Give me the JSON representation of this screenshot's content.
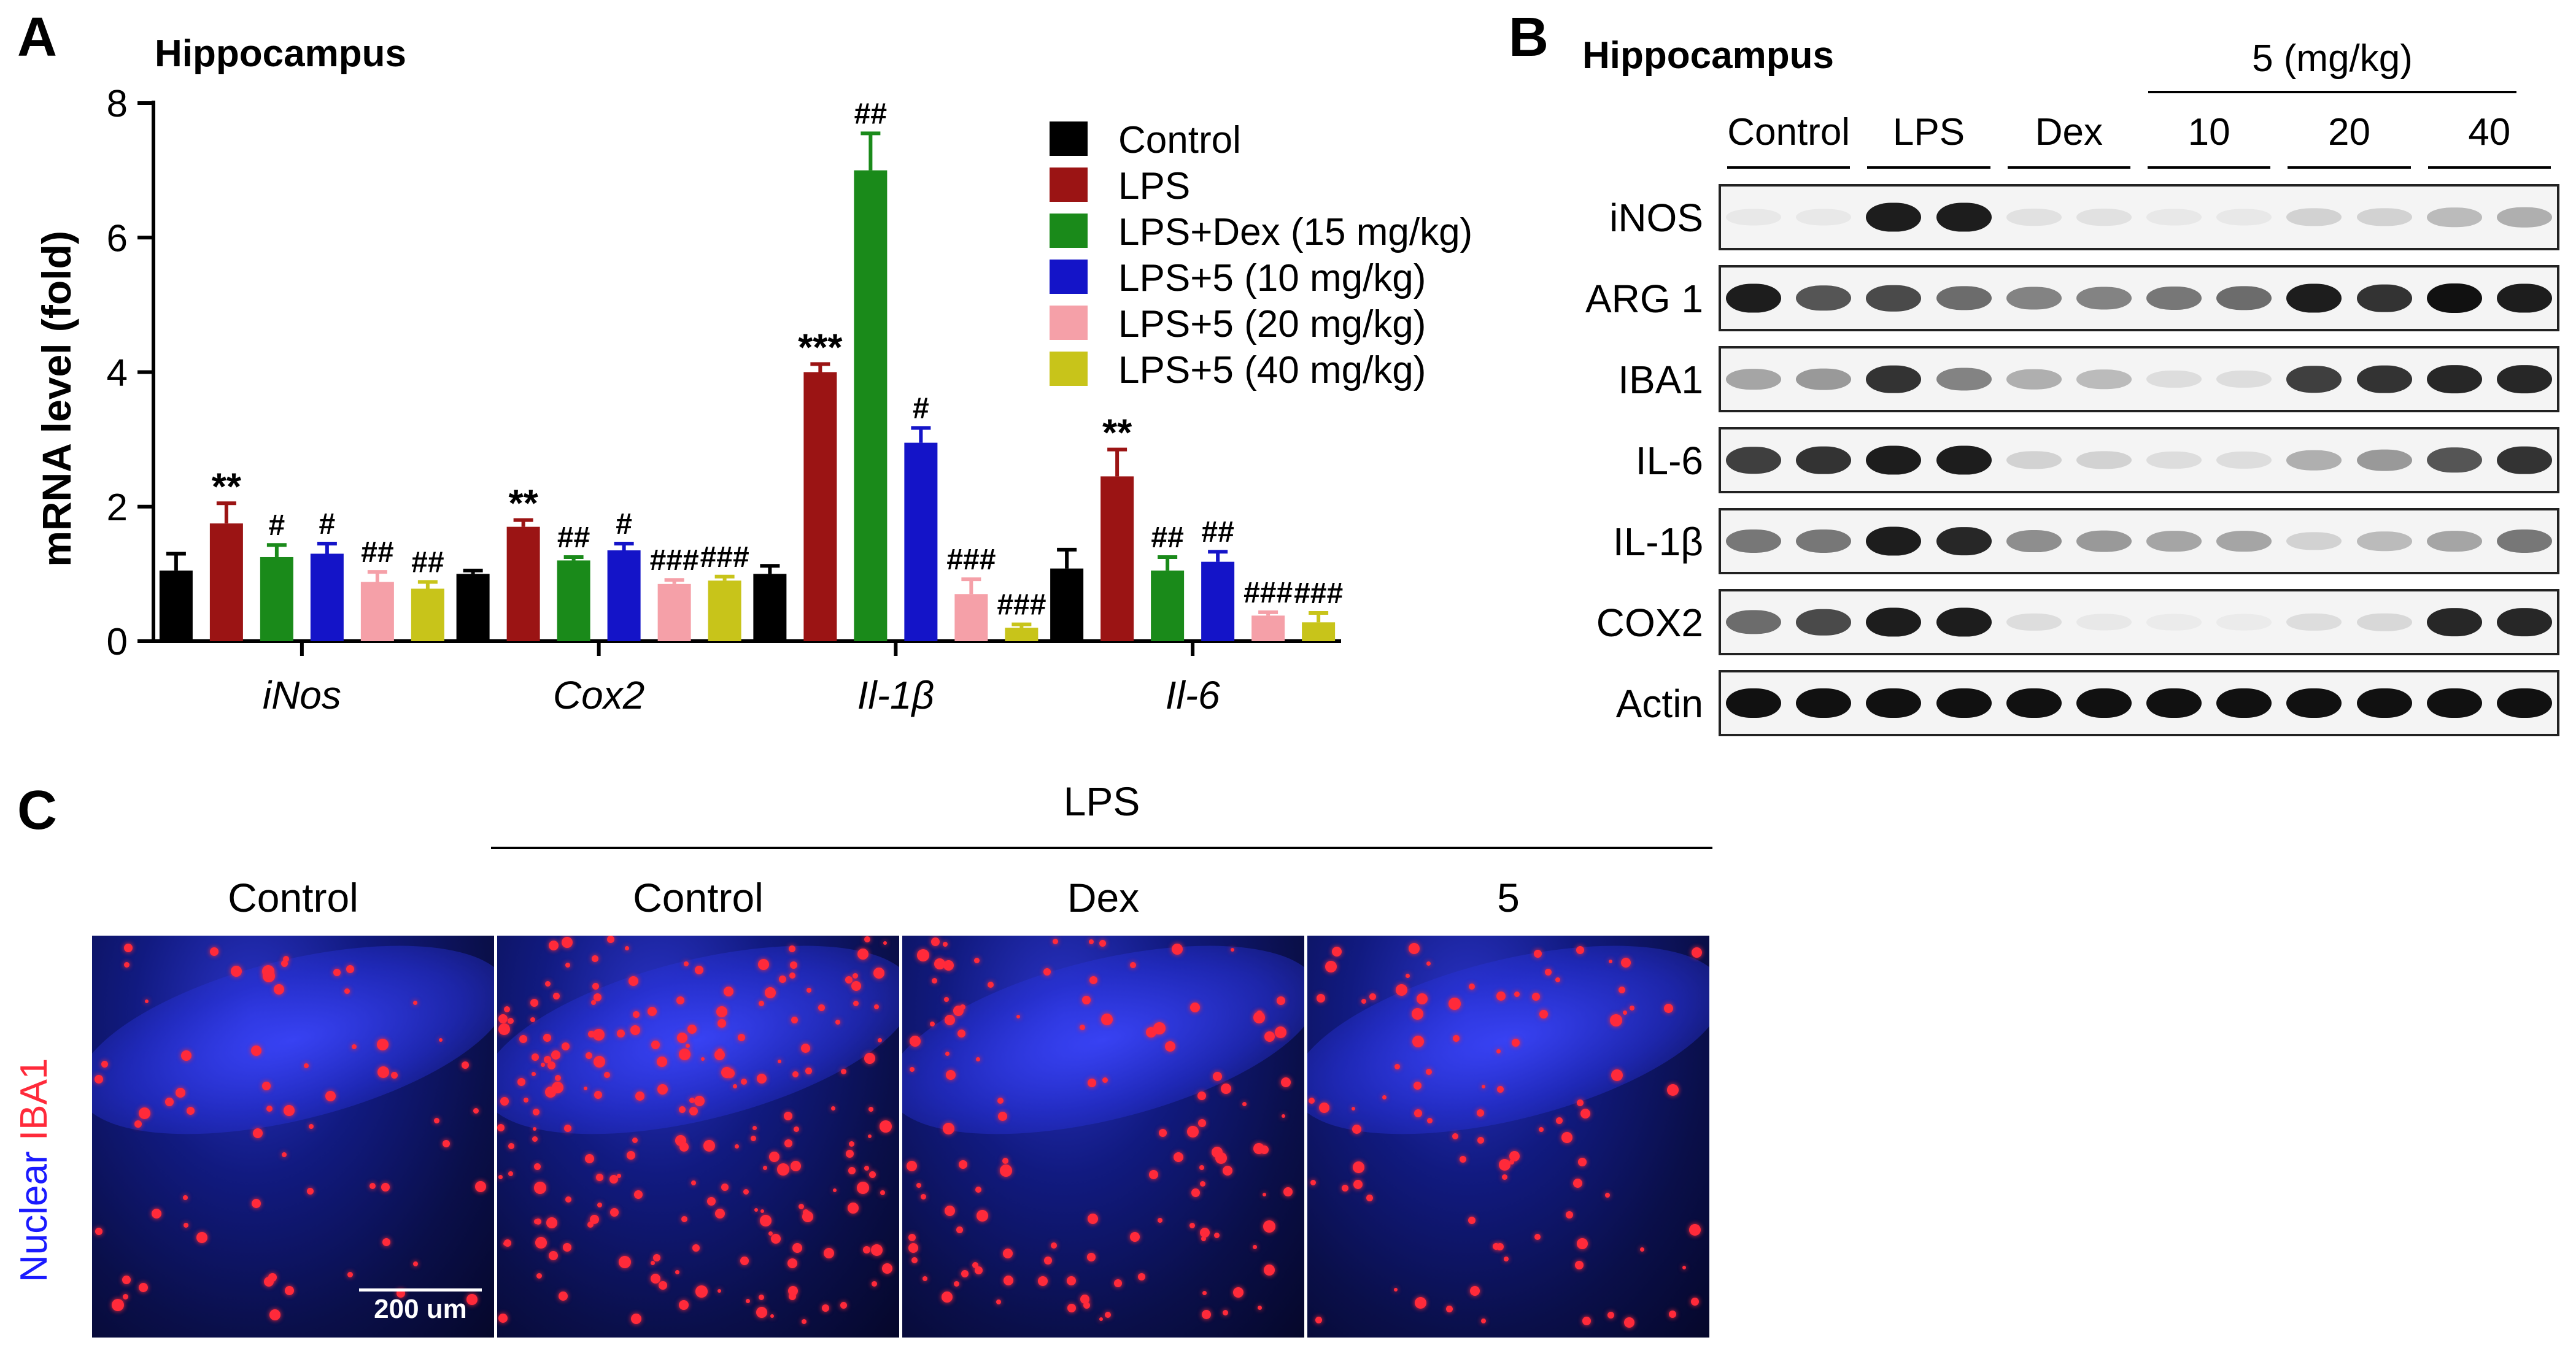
{
  "panels": {
    "a": {
      "letter": "A",
      "title": "Hippocampus"
    },
    "b": {
      "letter": "B",
      "title": "Hippocampus"
    },
    "c": {
      "letter": "C"
    }
  },
  "chart_data": {
    "type": "bar",
    "title": "Hippocampus",
    "ylabel": "mRNA level (fold)",
    "xlabel": "",
    "ylim": [
      0,
      8
    ],
    "yticks": [
      0,
      2,
      4,
      6,
      8
    ],
    "grid": false,
    "legend_position": "top-right",
    "categories": [
      "iNos",
      "Cox2",
      "Il-1β",
      "Il-6"
    ],
    "series": [
      {
        "name": "Control",
        "color": "#000000",
        "values": [
          1.05,
          1.0,
          1.0,
          1.08
        ],
        "errors": [
          0.25,
          0.05,
          0.12,
          0.28
        ],
        "annotations": [
          "",
          "",
          "",
          ""
        ]
      },
      {
        "name": "LPS",
        "color": "#9b1414",
        "values": [
          1.75,
          1.7,
          4.0,
          2.45
        ],
        "errors": [
          0.3,
          0.1,
          0.12,
          0.4
        ],
        "annotations": [
          "**",
          "**",
          "***",
          "**"
        ]
      },
      {
        "name": "LPS+Dex (15 mg/kg)",
        "color": "#1a8a1a",
        "values": [
          1.25,
          1.2,
          7.0,
          1.05
        ],
        "errors": [
          0.18,
          0.05,
          0.55,
          0.2
        ],
        "annotations": [
          "#",
          "##",
          "##",
          "##"
        ]
      },
      {
        "name": "LPS+5 (10 mg/kg)",
        "color": "#1414c8",
        "values": [
          1.3,
          1.35,
          2.95,
          1.18
        ],
        "errors": [
          0.15,
          0.1,
          0.22,
          0.15
        ],
        "annotations": [
          "#",
          "#",
          "#",
          "##"
        ]
      },
      {
        "name": "LPS+5 (20 mg/kg)",
        "color": "#f5a0a8",
        "values": [
          0.88,
          0.85,
          0.7,
          0.38
        ],
        "errors": [
          0.15,
          0.06,
          0.22,
          0.05
        ],
        "annotations": [
          "##",
          "###",
          "###",
          "###"
        ]
      },
      {
        "name": "LPS+5 (40 mg/kg)",
        "color": "#c8c41a",
        "values": [
          0.78,
          0.9,
          0.2,
          0.28
        ],
        "errors": [
          0.1,
          0.06,
          0.05,
          0.14
        ],
        "annotations": [
          "##",
          "###",
          "###",
          "###"
        ]
      }
    ]
  },
  "western_blot": {
    "group_labels": [
      "Control",
      "LPS",
      "Dex",
      "10",
      "20",
      "40"
    ],
    "dose_header": "5 (mg/kg)",
    "rows": [
      {
        "label": "iNOS",
        "intensities": [
          0.05,
          0.05,
          0.95,
          0.95,
          0.08,
          0.08,
          0.05,
          0.05,
          0.15,
          0.15,
          0.25,
          0.3
        ]
      },
      {
        "label": "ARG 1",
        "intensities": [
          0.95,
          0.7,
          0.75,
          0.6,
          0.5,
          0.5,
          0.55,
          0.6,
          0.95,
          0.85,
          1.0,
          0.95
        ]
      },
      {
        "label": "IBA1",
        "intensities": [
          0.35,
          0.4,
          0.85,
          0.5,
          0.3,
          0.25,
          0.1,
          0.1,
          0.8,
          0.85,
          0.9,
          0.9
        ]
      },
      {
        "label": "IL-6",
        "intensities": [
          0.8,
          0.85,
          0.95,
          0.95,
          0.15,
          0.15,
          0.1,
          0.1,
          0.3,
          0.4,
          0.7,
          0.85
        ]
      },
      {
        "label": "IL-1β",
        "intensities": [
          0.55,
          0.55,
          0.95,
          0.9,
          0.45,
          0.4,
          0.35,
          0.35,
          0.15,
          0.25,
          0.35,
          0.55
        ]
      },
      {
        "label": "COX2",
        "intensities": [
          0.6,
          0.75,
          0.95,
          0.95,
          0.1,
          0.05,
          0.03,
          0.03,
          0.1,
          0.12,
          0.9,
          0.9
        ]
      },
      {
        "label": "Actin",
        "intensities": [
          1,
          1,
          1,
          1,
          1,
          1,
          1,
          1,
          1,
          1,
          1,
          1
        ]
      }
    ]
  },
  "microscopy": {
    "group_header": "LPS",
    "panels": [
      "Control",
      "Control",
      "Dex",
      "5"
    ],
    "stain_label_nuclear": "Nuclear",
    "stain_label_iba1": "IBA1",
    "scale_bar": "200 um",
    "colors": {
      "nuclear": "#1a1aff",
      "iba1": "#ff2a3a"
    },
    "iba1_density": [
      0.2,
      1.0,
      0.5,
      0.35
    ]
  }
}
